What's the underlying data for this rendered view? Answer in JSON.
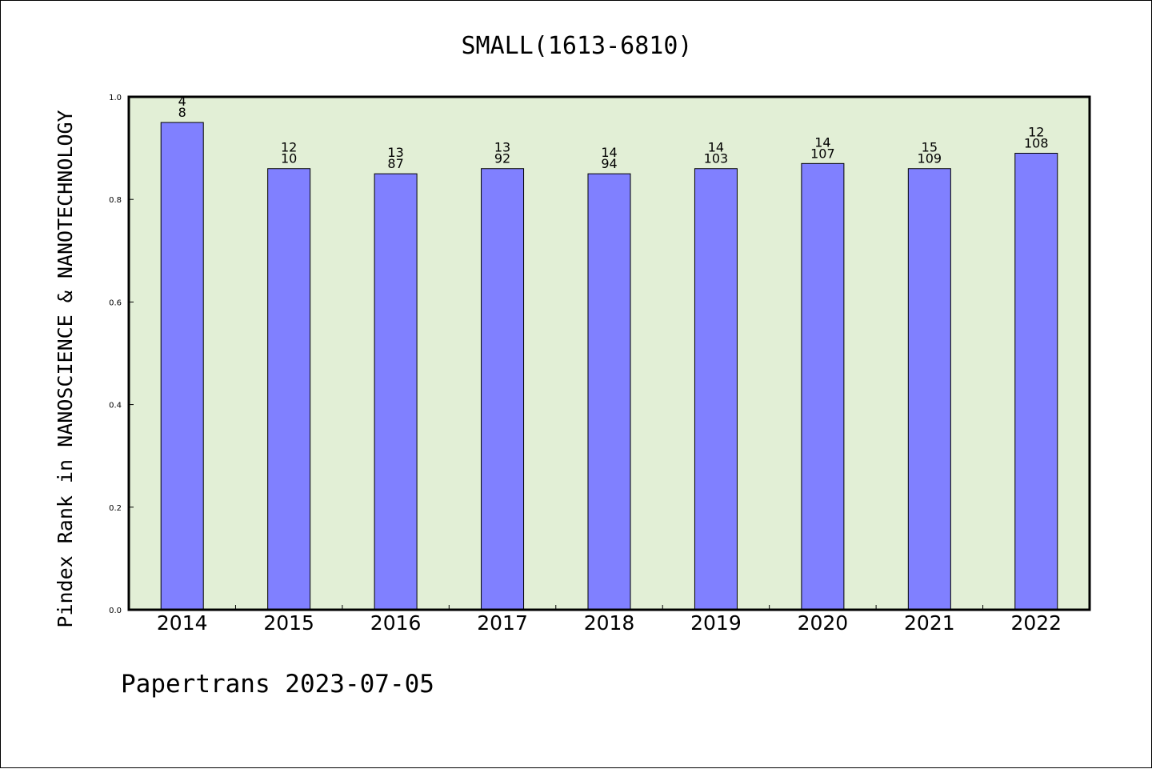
{
  "chart_data": {
    "type": "bar",
    "title": "SMALL(1613-6810)",
    "ylabel": "Pindex Rank in NANOSCIENCE & NANOTECHNOLOGY",
    "xlabel": "",
    "ylim": [
      0,
      1.0
    ],
    "yticks": [
      "0.0",
      "0.2",
      "0.4",
      "0.6",
      "0.8",
      "1.0"
    ],
    "categories": [
      "2014",
      "2015",
      "2016",
      "2017",
      "2018",
      "2019",
      "2020",
      "2021",
      "2022"
    ],
    "values": [
      0.95,
      0.86,
      0.85,
      0.86,
      0.85,
      0.86,
      0.87,
      0.86,
      0.89
    ],
    "labels_top": [
      "4",
      "12",
      "13",
      "13",
      "14",
      "14",
      "14",
      "15",
      "12"
    ],
    "labels_bottom": [
      "8",
      "10",
      "87",
      "92",
      "94",
      "103",
      "107",
      "109",
      "108"
    ],
    "grid": false,
    "colors": {
      "bar": "#8080ff",
      "plot_bg": "#e2efd6"
    }
  },
  "footer": {
    "text": "Papertrans 2023-07-05"
  }
}
